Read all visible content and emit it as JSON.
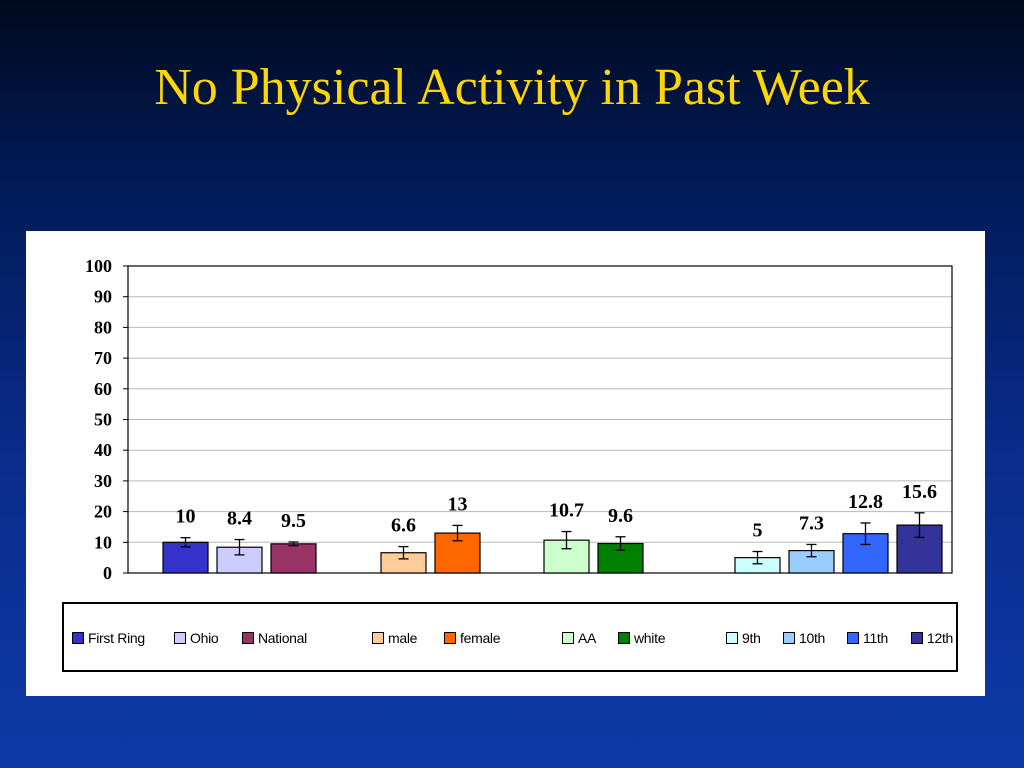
{
  "slide": {
    "title": "No Physical Activity in Past Week"
  },
  "chart_data": {
    "type": "bar",
    "title": "",
    "xlabel": "",
    "ylabel": "",
    "ylim": [
      0,
      100
    ],
    "yticks": [
      0,
      10,
      20,
      30,
      40,
      50,
      60,
      70,
      80,
      90,
      100
    ],
    "grid": true,
    "legend_position": "bottom",
    "groups": [
      {
        "bars": [
          {
            "name": "First Ring",
            "value": 10,
            "error": 1.5,
            "color": "#3333cc"
          },
          {
            "name": "Ohio",
            "value": 8.4,
            "error": 2.5,
            "color": "#ccccff"
          },
          {
            "name": "National",
            "value": 9.5,
            "error": 0.6,
            "color": "#993366"
          }
        ]
      },
      {
        "bars": [
          {
            "name": "male",
            "value": 6.6,
            "error": 2.0,
            "color": "#ffcc99"
          },
          {
            "name": "female",
            "value": 13,
            "error": 2.5,
            "color": "#ff6600"
          }
        ]
      },
      {
        "bars": [
          {
            "name": "AA",
            "value": 10.7,
            "error": 2.8,
            "color": "#ccffcc"
          },
          {
            "name": "white",
            "value": 9.6,
            "error": 2.2,
            "color": "#008000"
          }
        ]
      },
      {
        "bars": [
          {
            "name": "9th",
            "value": 5,
            "error": 2.0,
            "color": "#ccffff"
          },
          {
            "name": "10th",
            "value": 7.3,
            "error": 2.0,
            "color": "#99ccff"
          },
          {
            "name": "11th",
            "value": 12.8,
            "error": 3.5,
            "color": "#3366ff"
          },
          {
            "name": "12th",
            "value": 15.6,
            "error": 4.0,
            "color": "#333399"
          }
        ]
      }
    ]
  }
}
